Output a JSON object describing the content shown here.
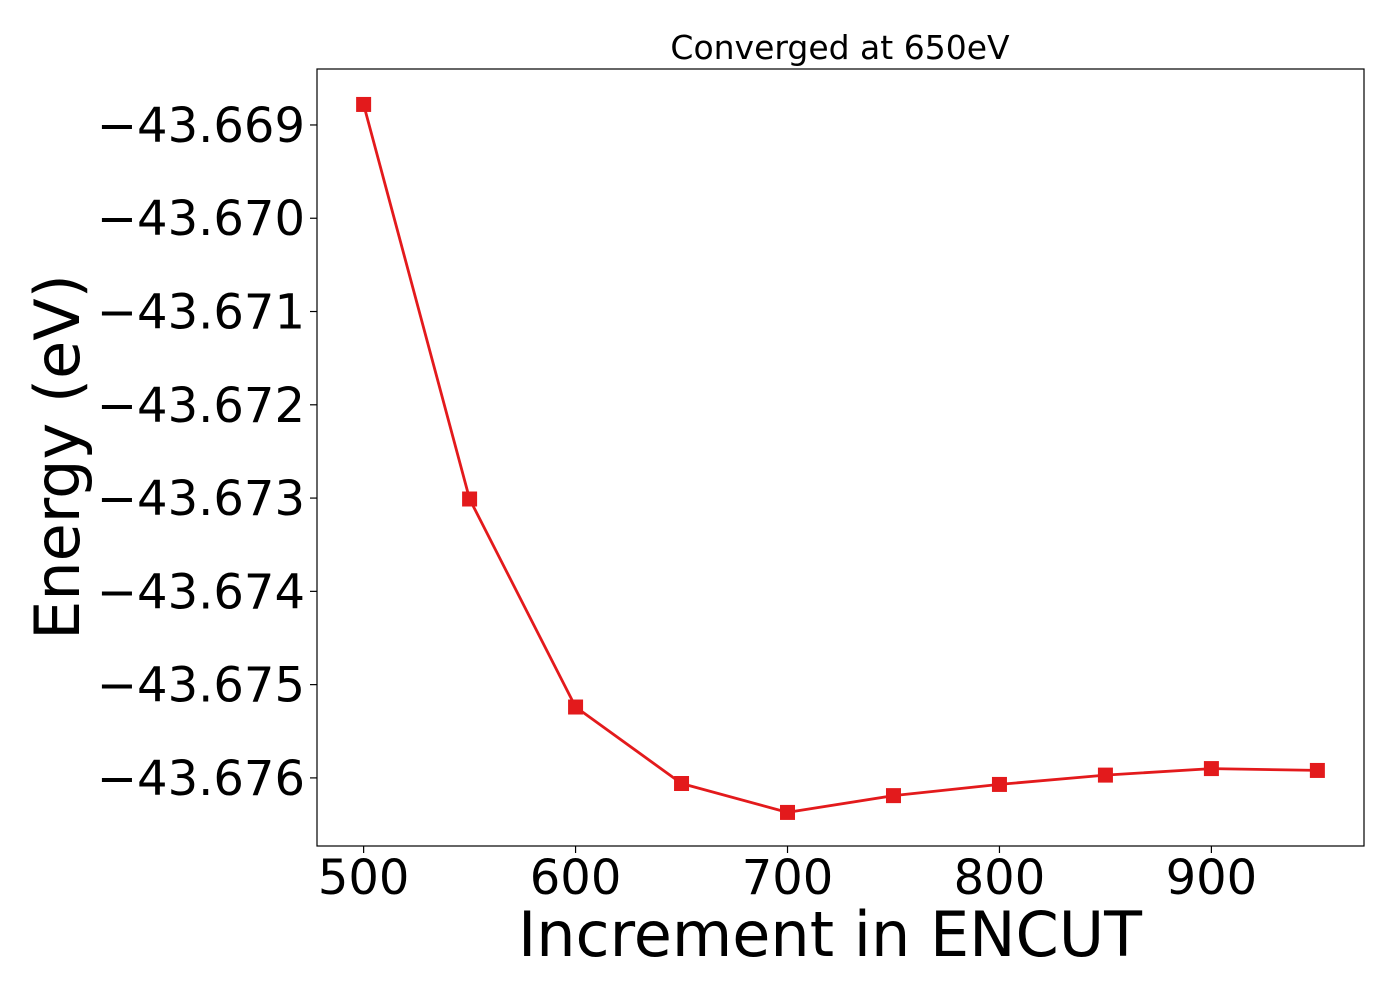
{
  "chart_data": {
    "type": "line",
    "title": "Converged at 650eV",
    "xlabel": "Increment in ENCUT",
    "ylabel": "Energy (eV)",
    "x": [
      500,
      550,
      600,
      650,
      700,
      750,
      800,
      850,
      900,
      950
    ],
    "series": [
      {
        "values": [
          -43.66878,
          -43.67301,
          -43.67524,
          -43.67606,
          -43.67637,
          -43.67619,
          -43.67607,
          -43.67597,
          -43.6759,
          -43.67592
        ],
        "color": "#e31a1c",
        "marker": "square"
      }
    ],
    "xlim": [
      478,
      972
    ],
    "ylim": [
      -43.67673,
      -43.6684
    ],
    "xticks": [
      500,
      600,
      700,
      800,
      900
    ],
    "xtick_labels": [
      "500",
      "600",
      "700",
      "800",
      "900"
    ],
    "yticks": [
      -43.669,
      -43.67,
      -43.671,
      -43.672,
      -43.673,
      -43.674,
      -43.675,
      -43.676
    ],
    "ytick_labels": [
      "−43.669",
      "−43.670",
      "−43.671",
      "−43.672",
      "−43.673",
      "−43.674",
      "−43.675",
      "−43.676"
    ],
    "grid": false,
    "legend": "none"
  }
}
